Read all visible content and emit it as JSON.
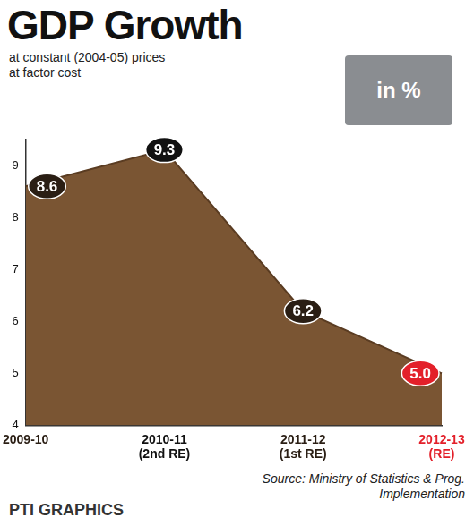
{
  "chart_data": {
    "type": "area",
    "title": "GDP Growth",
    "subtitle": "at constant (2004-05) prices\nat factor cost",
    "annotations": [
      "in %"
    ],
    "source": "Source: Ministry of Statistics & Prog. Implementation",
    "credit": "PTI GRAPHICS",
    "categories": [
      "2009-10",
      [
        "2010-11",
        "(2nd RE)"
      ],
      [
        "2011-12",
        "(1st RE)"
      ],
      [
        "2012-13",
        "(RE)"
      ]
    ],
    "values": [
      8.6,
      9.3,
      6.2,
      5.0
    ],
    "value_labels": [
      "8.6",
      "9.3",
      "6.2",
      "5.0"
    ],
    "color": "#7a5533",
    "colors": [
      "#2a1e14",
      "#111111",
      "#2a1e14",
      "#e3202a"
    ],
    "ylim": [
      4,
      9.5
    ],
    "yticks": [
      4,
      5,
      6,
      7,
      8,
      9
    ],
    "grid": false,
    "data_labels": true
  }
}
